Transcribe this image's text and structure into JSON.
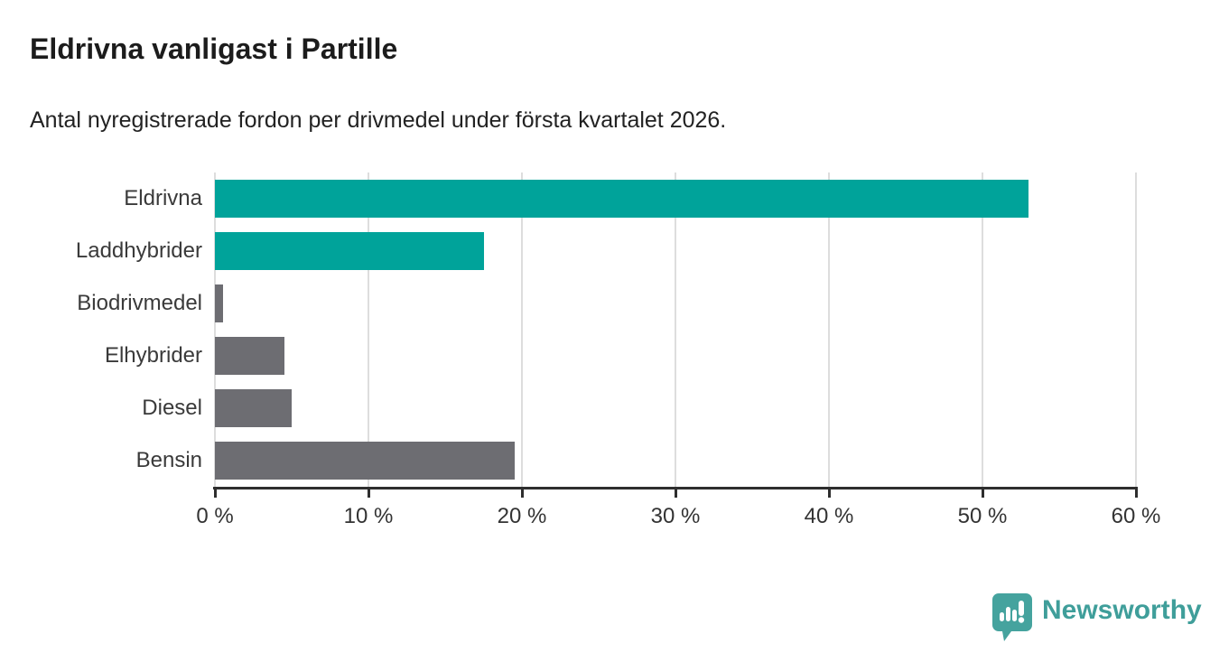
{
  "chart_data": {
    "type": "bar",
    "orientation": "horizontal",
    "title": "Eldrivna vanligast i Partille",
    "subtitle": "Antal nyregistrerade fordon per drivmedel under första kvartalet 2026.",
    "categories": [
      "Eldrivna",
      "Laddhybrider",
      "Biodrivmedel",
      "Elhybrider",
      "Diesel",
      "Bensin"
    ],
    "values": [
      53,
      17.5,
      0.5,
      4.5,
      5,
      19.5
    ],
    "unit": "%",
    "bar_colors": [
      "#00a39a",
      "#00a39a",
      "#6d6d72",
      "#6d6d72",
      "#6d6d72",
      "#6d6d72"
    ],
    "highlight_color": "#00a39a",
    "muted_color": "#6d6d72",
    "x_ticks": [
      0,
      10,
      20,
      30,
      40,
      50,
      60
    ],
    "x_tick_labels": [
      "0 %",
      "10 %",
      "20 %",
      "30 %",
      "40 %",
      "50 %",
      "60 %"
    ],
    "xlim": [
      0,
      60
    ],
    "grid": "vertical",
    "legend": "none"
  },
  "footer": {
    "brand": "Newsworthy",
    "logo_icon": "bar-chart-speech-bubble-icon",
    "brand_color": "#3f9e9a"
  }
}
